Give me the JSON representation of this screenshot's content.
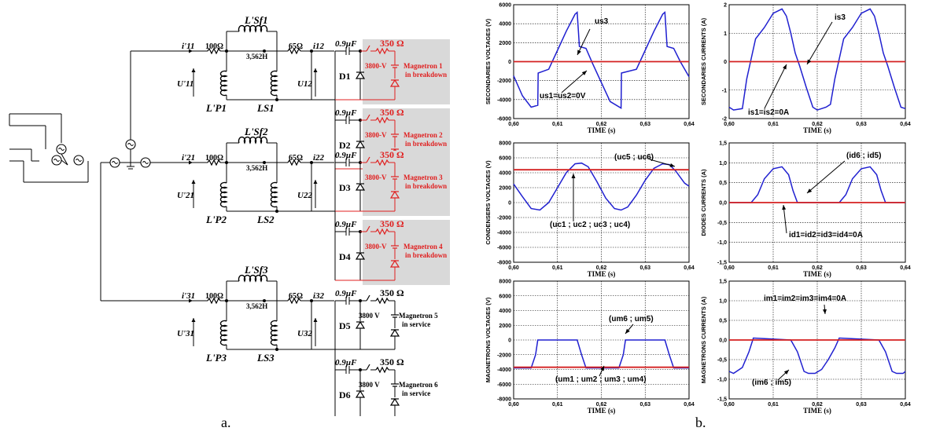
{
  "circuit": {
    "branches": [
      {
        "id": "1",
        "current_in": "i'11",
        "voltage_in": "U'11",
        "resistor1": "100Ω",
        "inductor_main": "L'Sf1",
        "inductor_main_sup": "f",
        "inductor_main_sub": "Sl1",
        "inductor_value": "3,562H",
        "inductor_p": "L'P1",
        "inductor_s": "LS1",
        "resistor2": "65Ω",
        "current_out": "i12",
        "voltage_out": "U12",
        "stages": [
          {
            "cap": "0.9µF",
            "res": "350 Ω",
            "volt": "3800-V",
            "diode": "D1",
            "mag1": "Magnetron 1",
            "mag2": "in breakdown",
            "red": true
          },
          {
            "cap": "0.9µF",
            "res": "350 Ω",
            "volt": "3800-V",
            "diode": "D2",
            "mag1": "Magnetron 2",
            "mag2": "in breakdown",
            "red": true
          }
        ]
      },
      {
        "id": "2",
        "current_in": "i'21",
        "voltage_in": "U'21",
        "resistor1": "100Ω",
        "inductor_main": "L'Sf2",
        "inductor_main_sup": "f",
        "inductor_main_sub": "Sl2",
        "inductor_value": "3,562H",
        "inductor_p": "L'P2",
        "inductor_s": "LS2",
        "resistor2": "65Ω",
        "current_out": "i22",
        "voltage_out": "U22",
        "stages": [
          {
            "cap": "0.9µF",
            "res": "350 Ω",
            "volt": "3800-V",
            "diode": "D3",
            "mag1": "Magnetron 3",
            "mag2": "in breakdown",
            "red": true
          },
          {
            "cap": "0.9µF",
            "res": "350 Ω",
            "volt": "3800-V",
            "diode": "D4",
            "mag1": "Magnetron 4",
            "mag2": "in breakdown",
            "red": true
          }
        ]
      },
      {
        "id": "3",
        "current_in": "i'31",
        "voltage_in": "U'31",
        "resistor1": "100Ω",
        "inductor_main": "L'Sf3",
        "inductor_main_sup": "f",
        "inductor_main_sub": "Sl3",
        "inductor_value": "3,562H",
        "inductor_p": "L'P3",
        "inductor_s": "LS3",
        "resistor2": "65Ω",
        "current_out": "i32",
        "voltage_out": "U32",
        "stages": [
          {
            "cap": "0.9µF",
            "res": "350 Ω",
            "volt": "3800 V",
            "diode": "D5",
            "mag1": "Magnetron 5",
            "mag2": "in service",
            "red": false
          },
          {
            "cap": "0.9µF",
            "res": "350 Ω",
            "volt": "3800 V",
            "diode": "D6",
            "mag1": "Magnetron 6",
            "mag2": "in service",
            "red": false
          }
        ]
      }
    ]
  },
  "chart_data": [
    {
      "type": "line",
      "ylabel": "SECONDARIES VOLTAGES (V)",
      "xlabel": "TIME (s)",
      "xlim": [
        0.6,
        0.64
      ],
      "ylim": [
        -6000,
        6000
      ],
      "yticks": [
        "6000",
        "4000",
        "2000",
        "0",
        "-2000",
        "-4000",
        "-6000"
      ],
      "xticks": [
        "0,60",
        "0,61",
        "0,62",
        "0,63",
        "0,64"
      ],
      "annotations": [
        "us3",
        "us1=us2=0V"
      ],
      "series": [
        {
          "color": "#2020d0",
          "x": [
            0.6,
            0.602,
            0.604,
            0.6055,
            0.6056,
            0.608,
            0.61,
            0.612,
            0.614,
            0.6145,
            0.615,
            0.6165,
            0.618,
            0.62,
            0.622,
            0.6245,
            0.6246,
            0.628,
            0.63,
            0.632,
            0.634,
            0.6345,
            0.635,
            0.6365,
            0.638,
            0.64
          ],
          "y": [
            -1500,
            -3600,
            -4800,
            -4600,
            -1200,
            -800,
            1200,
            3200,
            5000,
            5200,
            1600,
            1400,
            -200,
            -2200,
            -4200,
            -4900,
            -1200,
            -800,
            1200,
            3200,
            5000,
            5200,
            1600,
            1400,
            0,
            -1600
          ]
        },
        {
          "color": "#d42020",
          "x": [
            0.6,
            0.64
          ],
          "y": [
            0,
            0
          ]
        }
      ]
    },
    {
      "type": "line",
      "ylabel": "SECONDARIES CURRENTS (A)",
      "xlabel": "TIME (s)",
      "xlim": [
        0.6,
        0.64
      ],
      "ylim": [
        -2,
        2
      ],
      "yticks": [
        "2",
        "1",
        "0",
        "-1",
        "-2"
      ],
      "xticks": [
        "0,60",
        "0,61",
        "0,62",
        "0,63",
        "0,64"
      ],
      "annotations": [
        "is3",
        "is1=is2=0A"
      ],
      "series": [
        {
          "color": "#2020d0",
          "x": [
            0.6,
            0.601,
            0.603,
            0.604,
            0.605,
            0.606,
            0.608,
            0.61,
            0.612,
            0.613,
            0.614,
            0.615,
            0.616,
            0.6175,
            0.619,
            0.62,
            0.621,
            0.622,
            0.623,
            0.624,
            0.625,
            0.626,
            0.628,
            0.63,
            0.632,
            0.633,
            0.634,
            0.635,
            0.636,
            0.6375,
            0.639,
            0.64
          ],
          "y": [
            -1.6,
            -1.7,
            -1.65,
            -0.6,
            0.1,
            0.8,
            1.2,
            1.7,
            1.85,
            1.6,
            1.0,
            0.3,
            -0.15,
            -0.9,
            -1.6,
            -1.7,
            -1.65,
            -1.6,
            -1.5,
            -0.6,
            0.1,
            0.8,
            1.2,
            1.7,
            1.85,
            1.6,
            1.0,
            0.3,
            -0.15,
            -0.9,
            -1.6,
            -1.65
          ]
        },
        {
          "color": "#d42020",
          "x": [
            0.6,
            0.64
          ],
          "y": [
            0,
            0
          ]
        }
      ]
    },
    {
      "type": "line",
      "ylabel": "CONDENSERS VOLTAGES (V)",
      "xlabel": "TIME (s)",
      "xlim": [
        0.6,
        0.64
      ],
      "ylim": [
        -8000,
        8000
      ],
      "yticks": [
        "8000",
        "6000",
        "4000",
        "2000",
        "0",
        "-2000",
        "-4000",
        "-6000",
        "-8000"
      ],
      "xticks": [
        "0,60",
        "0,61",
        "0,62",
        "0,63",
        "0,64"
      ],
      "annotations": [
        "(uc5 ; uc6)",
        "(uc1 ; uc2 ; uc3 ; uc4)"
      ],
      "series": [
        {
          "color": "#2020d0",
          "x": [
            0.6,
            0.602,
            0.604,
            0.606,
            0.608,
            0.61,
            0.612,
            0.614,
            0.6155,
            0.617,
            0.619,
            0.621,
            0.623,
            0.6245,
            0.626,
            0.628,
            0.63,
            0.632,
            0.634,
            0.6355,
            0.637,
            0.639,
            0.64
          ],
          "y": [
            2500,
            800,
            -800,
            -1000,
            0,
            2000,
            4000,
            5200,
            5300,
            4800,
            2800,
            600,
            -800,
            -1000,
            -600,
            1000,
            3000,
            4600,
            5200,
            5100,
            4200,
            2600,
            2200
          ]
        },
        {
          "color": "#d42020",
          "x": [
            0.6,
            0.64
          ],
          "y": [
            4400,
            4400
          ]
        }
      ]
    },
    {
      "type": "line",
      "ylabel": "DIODES CURRENTS (A)",
      "xlabel": "TIME (s)",
      "xlim": [
        0.6,
        0.64
      ],
      "ylim": [
        -1.5,
        1.5
      ],
      "yticks": [
        "1,5",
        "1,0",
        "0,5",
        "0,0",
        "-0,5",
        "-1,0",
        "-1,5"
      ],
      "xticks": [
        "0,60",
        "0,61",
        "0,62",
        "0,63",
        "0,64"
      ],
      "annotations": [
        "(id6 ; id5)",
        "id1=id2=id3=id4=0A"
      ],
      "series": [
        {
          "color": "#2020d0",
          "x": [
            0.6,
            0.605,
            0.6065,
            0.608,
            0.61,
            0.612,
            0.6135,
            0.6145,
            0.6155,
            0.625,
            0.6265,
            0.628,
            0.63,
            0.632,
            0.6335,
            0.6345,
            0.6355,
            0.64
          ],
          "y": [
            0,
            0,
            0.2,
            0.6,
            0.85,
            0.9,
            0.7,
            0.3,
            0,
            0,
            0.2,
            0.6,
            0.85,
            0.9,
            0.7,
            0.3,
            0,
            0
          ]
        },
        {
          "color": "#d42020",
          "x": [
            0.6,
            0.64
          ],
          "y": [
            0,
            0
          ]
        }
      ]
    },
    {
      "type": "line",
      "ylabel": "MAGNETRONS VOLTAGES (V)",
      "xlabel": "TIME (s)",
      "xlim": [
        0.6,
        0.64
      ],
      "ylim": [
        -8000,
        8000
      ],
      "yticks": [
        "8000",
        "6000",
        "4000",
        "2000",
        "0",
        "-2000",
        "-4000",
        "-6000",
        "-8000"
      ],
      "xticks": [
        "0,60",
        "0,61",
        "0,62",
        "0,63",
        "0,64"
      ],
      "annotations": [
        "(um6 ; um5)",
        "(um1 ; um2 ; um3 ; um4)"
      ],
      "series": [
        {
          "color": "#2020d0",
          "x": [
            0.6,
            0.604,
            0.605,
            0.6055,
            0.6145,
            0.6155,
            0.6165,
            0.624,
            0.625,
            0.6255,
            0.6345,
            0.6355,
            0.6365,
            0.64
          ],
          "y": [
            -3800,
            -3800,
            -2000,
            0,
            0,
            -2000,
            -3800,
            -3800,
            -2000,
            0,
            0,
            -2000,
            -3800,
            -3800
          ]
        },
        {
          "color": "#d42020",
          "x": [
            0.6,
            0.64
          ],
          "y": [
            -3700,
            -3700
          ]
        }
      ]
    },
    {
      "type": "line",
      "ylabel": "MAGNETRONS CURRENTS (A)",
      "xlabel": "TIME (s)",
      "xlim": [
        0.6,
        0.64
      ],
      "ylim": [
        -1.5,
        1.5
      ],
      "yticks": [
        "1,5",
        "1,0",
        "0,5",
        "0,0",
        "-0,5",
        "-1,0",
        "-1,5"
      ],
      "xticks": [
        "0,60",
        "0,61",
        "0,62",
        "0,63",
        "0,64"
      ],
      "annotations": [
        "im1=im2=im3=im4=0A",
        "(im6 ; im5)"
      ],
      "series": [
        {
          "color": "#2020d0",
          "x": [
            0.6,
            0.601,
            0.603,
            0.6045,
            0.6055,
            0.614,
            0.6155,
            0.617,
            0.618,
            0.6195,
            0.621,
            0.6225,
            0.624,
            0.625,
            0.634,
            0.6355,
            0.637,
            0.638,
            0.6395,
            0.64
          ],
          "y": [
            -0.8,
            -0.85,
            -0.7,
            -0.3,
            0.05,
            0,
            -0.3,
            -0.8,
            -0.85,
            -0.85,
            -0.75,
            -0.5,
            -0.2,
            0.05,
            0,
            -0.3,
            -0.8,
            -0.85,
            -0.85,
            -0.8
          ]
        },
        {
          "color": "#d42020",
          "x": [
            0.6,
            0.64
          ],
          "y": [
            0,
            0
          ]
        }
      ]
    }
  ],
  "captions": {
    "a": "a.",
    "b": "b."
  }
}
